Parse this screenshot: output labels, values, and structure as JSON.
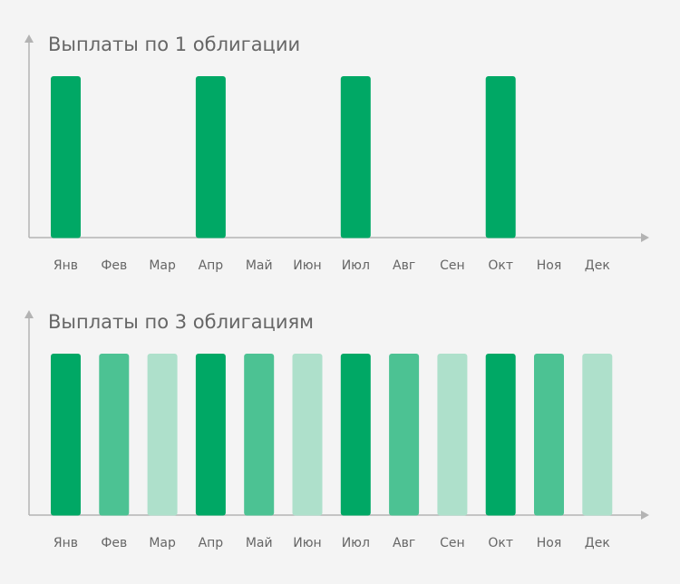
{
  "colors": {
    "background": "#f4f4f4",
    "axis": "#b3b3b3",
    "text": "#666666",
    "bar_dark": "#00a865",
    "bar_medium": "#4cc293",
    "bar_light": "#aee0cb"
  },
  "chart_data": [
    {
      "type": "bar",
      "title": "Выплаты по 1 облигации",
      "xlabel": "",
      "ylabel": "",
      "categories": [
        "Янв",
        "Фев",
        "Мар",
        "Апр",
        "Май",
        "Июн",
        "Июл",
        "Авг",
        "Сен",
        "Окт",
        "Ноя",
        "Дек"
      ],
      "values": [
        1,
        0,
        0,
        1,
        0,
        0,
        1,
        0,
        0,
        1,
        0,
        0
      ],
      "bar_colors": [
        "#00a865",
        "#00a865",
        "#00a865",
        "#00a865",
        "#00a865",
        "#00a865",
        "#00a865",
        "#00a865",
        "#00a865",
        "#00a865",
        "#00a865",
        "#00a865"
      ],
      "ylim": [
        0,
        1
      ],
      "grid": false
    },
    {
      "type": "bar",
      "title": "Выплаты по 3 облигациям",
      "xlabel": "",
      "ylabel": "",
      "categories": [
        "Янв",
        "Фев",
        "Мар",
        "Апр",
        "Май",
        "Июн",
        "Июл",
        "Авг",
        "Сен",
        "Окт",
        "Ноя",
        "Дек"
      ],
      "values": [
        1,
        1,
        1,
        1,
        1,
        1,
        1,
        1,
        1,
        1,
        1,
        1
      ],
      "bar_colors": [
        "#00a865",
        "#4cc293",
        "#aee0cb",
        "#00a865",
        "#4cc293",
        "#aee0cb",
        "#00a865",
        "#4cc293",
        "#aee0cb",
        "#00a865",
        "#4cc293",
        "#aee0cb"
      ],
      "ylim": [
        0,
        1
      ],
      "grid": false
    }
  ]
}
